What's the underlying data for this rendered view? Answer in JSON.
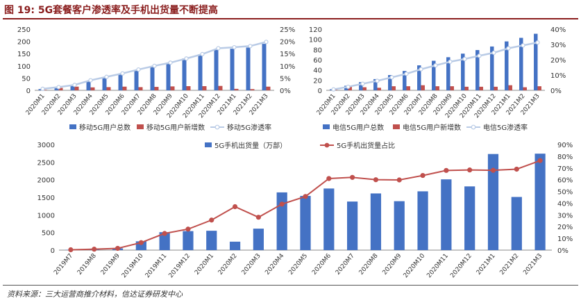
{
  "figure": {
    "title": "图 19: 5G套餐客户渗透率及手机出货量不断提高",
    "source": "资料来源：三大运营商推介材料，信达证券研发中心"
  },
  "colors": {
    "bar": "#4472c4",
    "bar_secondary": "#c0504d",
    "line": "#c0504d",
    "line_light": "#b9cbe6"
  },
  "chart_data": [
    {
      "type": "bar",
      "categories": [
        "2020M1",
        "2020M2",
        "2020M3",
        "2020M4",
        "2020M5",
        "2020M6",
        "2020M7",
        "2020M8",
        "2020M9",
        "2020M10",
        "2020M11",
        "2020M12",
        "2021M1",
        "2021M2",
        "2021M3"
      ],
      "series": [
        {
          "name": "移动5G用户总数",
          "type": "bar",
          "axis": "left",
          "values": [
            5,
            11,
            17,
            39,
            53,
            66,
            82,
            97,
            113,
            130,
            147,
            165,
            170,
            175,
            190
          ]
        },
        {
          "name": "移动5G用户新增数",
          "type": "bar",
          "axis": "left",
          "values": [
            2,
            10,
            15,
            12,
            13,
            15,
            13,
            14,
            16,
            17,
            17,
            18,
            6,
            5,
            15
          ]
        },
        {
          "name": "移动5G渗透率",
          "type": "line",
          "axis": "right",
          "values": [
            0.6,
            1.3,
            2.2,
            4.1,
            5.5,
            6.9,
            8.5,
            10.0,
            11.3,
            13.0,
            14.8,
            17.2,
            17.6,
            18.1,
            19.8
          ]
        }
      ],
      "ylim": [
        0,
        250
      ],
      "yticks": [
        0,
        50,
        100,
        150,
        200,
        250
      ],
      "y2lim": [
        0,
        25
      ],
      "y2ticks": [
        "0%",
        "5%",
        "10%",
        "15%",
        "20%",
        "25%"
      ],
      "legend": "bottom"
    },
    {
      "type": "bar",
      "categories": [
        "2020M1",
        "2020M2",
        "2020M3",
        "2020M4",
        "2020M5",
        "2020M6",
        "2020M7",
        "2020M8",
        "2020M9",
        "2020M10",
        "2020M11",
        "2020M12",
        "2021M1",
        "2021M2",
        "2021M3"
      ],
      "series": [
        {
          "name": "电信5G用户总数",
          "type": "bar",
          "axis": "left",
          "values": [
            2,
            9,
            16,
            22,
            30,
            38,
            49,
            58,
            65,
            72,
            79,
            86,
            96,
            103,
            111
          ]
        },
        {
          "name": "电信5G用户新增数",
          "type": "bar",
          "axis": "left",
          "values": [
            1,
            7,
            6,
            5,
            8,
            8,
            10,
            8,
            8,
            7,
            7,
            7,
            10,
            6,
            8
          ]
        },
        {
          "name": "电信5G渗透率",
          "type": "line",
          "axis": "right",
          "values": [
            0.6,
            2.3,
            4.3,
            6.2,
            8.5,
            10.8,
            13.8,
            16.3,
            18.7,
            20.5,
            22.6,
            24.6,
            27.5,
            29.4,
            31.3
          ]
        }
      ],
      "ylim": [
        0,
        120
      ],
      "yticks": [
        0,
        20,
        40,
        60,
        80,
        100,
        120
      ],
      "y2lim": [
        0,
        40
      ],
      "y2ticks": [
        "0%",
        "10%",
        "20%",
        "30%",
        "40%"
      ],
      "legend": "bottom"
    },
    {
      "type": "bar",
      "categories": [
        "2019M7",
        "2019M8",
        "2019M9",
        "2019M10",
        "2019M11",
        "2019M12",
        "2020M1",
        "2020M2",
        "2020M3",
        "2020M4",
        "2020M5",
        "2020M6",
        "2020M7",
        "2020M8",
        "2020M9",
        "2020M10",
        "2020M11",
        "2020M12",
        "2021M1",
        "2021M2",
        "2021M3"
      ],
      "series": [
        {
          "name": "5G手机出货量（万部）",
          "type": "bar",
          "axis": "left",
          "values": [
            10,
            20,
            50,
            250,
            510,
            540,
            550,
            240,
            610,
            1640,
            1540,
            1750,
            1380,
            1610,
            1390,
            1670,
            2010,
            1810,
            2730,
            1510,
            2740
          ]
        },
        {
          "name": "5G手机出货量占比",
          "type": "line",
          "axis": "right",
          "values": [
            0.3,
            0.8,
            1.5,
            6.4,
            14.2,
            17.9,
            25.6,
            37.0,
            28.0,
            39.2,
            45.7,
            61.0,
            62.0,
            60.0,
            59.8,
            63.6,
            67.9,
            68.3,
            68.0,
            69.0,
            76.3
          ]
        }
      ],
      "ylim": [
        0,
        3000
      ],
      "yticks": [
        0,
        500,
        1000,
        1500,
        2000,
        2500,
        3000
      ],
      "y2lim": [
        0,
        90
      ],
      "y2ticks": [
        "0%",
        "10%",
        "20%",
        "30%",
        "40%",
        "50%",
        "60%",
        "70%",
        "80%",
        "90%"
      ],
      "legend": "top"
    }
  ]
}
